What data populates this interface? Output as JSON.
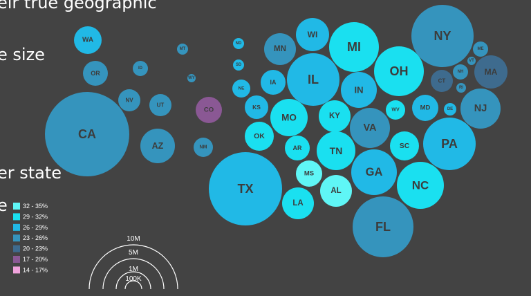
{
  "slide": {
    "line1": "eir true geographic",
    "line2": "e size",
    "line3": "er state",
    "line4": "e"
  },
  "chart_data": {
    "type": "bubble-map",
    "color_legend": [
      {
        "label": "32 - 35%",
        "color": "#5ff6f6"
      },
      {
        "label": "29 - 32%",
        "color": "#1ae0f0"
      },
      {
        "label": "26 - 29%",
        "color": "#21b9e6"
      },
      {
        "label": "23 - 26%",
        "color": "#3594bd"
      },
      {
        "label": "20 - 23%",
        "color": "#3e6b8e"
      },
      {
        "label": "17 - 20%",
        "color": "#8a5894"
      },
      {
        "label": "14 - 17%",
        "color": "#f0a3dc"
      }
    ],
    "size_legend": [
      "10M",
      "5M",
      "1M",
      "100K"
    ],
    "states": [
      {
        "id": "WA",
        "label": "WA",
        "color": "#21b9e6"
      },
      {
        "id": "OR",
        "label": "OR",
        "color": "#3594bd"
      },
      {
        "id": "ID",
        "label": "ID",
        "color": "#3594bd"
      },
      {
        "id": "MT",
        "label": "MT",
        "color": "#3594bd"
      },
      {
        "id": "WY",
        "label": "WY",
        "color": "#3594bd"
      },
      {
        "id": "ND",
        "label": "ND",
        "color": "#21b9e6"
      },
      {
        "id": "SD",
        "label": "SD",
        "color": "#21b9e6"
      },
      {
        "id": "NE",
        "label": "NE",
        "color": "#21b9e6"
      },
      {
        "id": "NV",
        "label": "NV",
        "color": "#3594bd"
      },
      {
        "id": "UT",
        "label": "UT",
        "color": "#3594bd"
      },
      {
        "id": "CO",
        "label": "CO",
        "color": "#8a5894"
      },
      {
        "id": "CA",
        "label": "CA",
        "color": "#3594bd"
      },
      {
        "id": "AZ",
        "label": "AZ",
        "color": "#3594bd"
      },
      {
        "id": "NM",
        "label": "NM",
        "color": "#3594bd"
      },
      {
        "id": "MN",
        "label": "MN",
        "color": "#3594bd"
      },
      {
        "id": "WI",
        "label": "WI",
        "color": "#21b9e6"
      },
      {
        "id": "MI",
        "label": "MI",
        "color": "#1ae0f0"
      },
      {
        "id": "IA",
        "label": "IA",
        "color": "#21b9e6"
      },
      {
        "id": "IL",
        "label": "IL",
        "color": "#21b9e6"
      },
      {
        "id": "IN",
        "label": "IN",
        "color": "#21b9e6"
      },
      {
        "id": "OH",
        "label": "OH",
        "color": "#1ae0f0"
      },
      {
        "id": "KS",
        "label": "KS",
        "color": "#21b9e6"
      },
      {
        "id": "MO",
        "label": "MO",
        "color": "#1ae0f0"
      },
      {
        "id": "KY",
        "label": "KY",
        "color": "#1ae0f0"
      },
      {
        "id": "WV",
        "label": "WV",
        "color": "#1ae0f0"
      },
      {
        "id": "VA",
        "label": "VA",
        "color": "#3594bd"
      },
      {
        "id": "OK",
        "label": "OK",
        "color": "#1ae0f0"
      },
      {
        "id": "AR",
        "label": "AR",
        "color": "#1ae0f0"
      },
      {
        "id": "TN",
        "label": "TN",
        "color": "#1ae0f0"
      },
      {
        "id": "NC",
        "label": "NC",
        "color": "#1ae0f0"
      },
      {
        "id": "SC",
        "label": "SC",
        "color": "#1ae0f0"
      },
      {
        "id": "TX",
        "label": "TX",
        "color": "#21b9e6"
      },
      {
        "id": "MS",
        "label": "MS",
        "color": "#5ff6f6"
      },
      {
        "id": "AL",
        "label": "AL",
        "color": "#5ff6f6"
      },
      {
        "id": "GA",
        "label": "GA",
        "color": "#21b9e6"
      },
      {
        "id": "LA",
        "label": "LA",
        "color": "#1ae0f0"
      },
      {
        "id": "FL",
        "label": "FL",
        "color": "#3594bd"
      },
      {
        "id": "NY",
        "label": "NY",
        "color": "#3594bd"
      },
      {
        "id": "ME",
        "label": "ME",
        "color": "#3594bd"
      },
      {
        "id": "VT",
        "label": "VT",
        "color": "#3594bd"
      },
      {
        "id": "NH",
        "label": "NH",
        "color": "#3594bd"
      },
      {
        "id": "MA",
        "label": "MA",
        "color": "#3e6b8e"
      },
      {
        "id": "CT",
        "label": "CT",
        "color": "#3e6b8e"
      },
      {
        "id": "RI",
        "label": "RI",
        "color": "#3594bd"
      },
      {
        "id": "MD",
        "label": "MD",
        "color": "#21b9e6"
      },
      {
        "id": "DE",
        "label": "DE",
        "color": "#21b9e6"
      },
      {
        "id": "NJ",
        "label": "NJ",
        "color": "#3594bd"
      },
      {
        "id": "PA",
        "label": "PA",
        "color": "#21b9e6"
      }
    ]
  }
}
